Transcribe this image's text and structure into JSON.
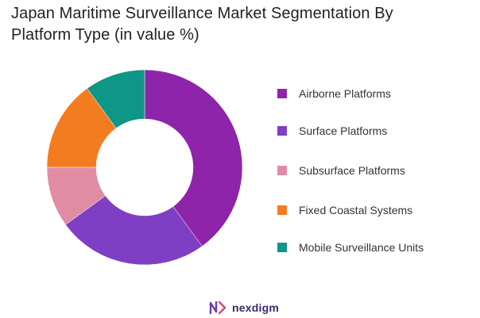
{
  "title": {
    "line1": "Japan Maritime Surveillance Market Segmentation By",
    "line2": "Platform Type (in value %)"
  },
  "chart_data": {
    "type": "pie",
    "donut": true,
    "legend_position": "right",
    "categories": [
      "Airborne Platforms",
      "Surface Platforms",
      "Subsurface Platforms",
      "Fixed Coastal Systems",
      "Mobile Surveillance Units"
    ],
    "values": [
      40,
      25,
      10,
      15,
      10
    ],
    "colors": [
      "#8e24aa",
      "#7e3fc4",
      "#e08ca4",
      "#f47c20",
      "#0e9687"
    ]
  },
  "brand": {
    "name": "nexdigm"
  }
}
